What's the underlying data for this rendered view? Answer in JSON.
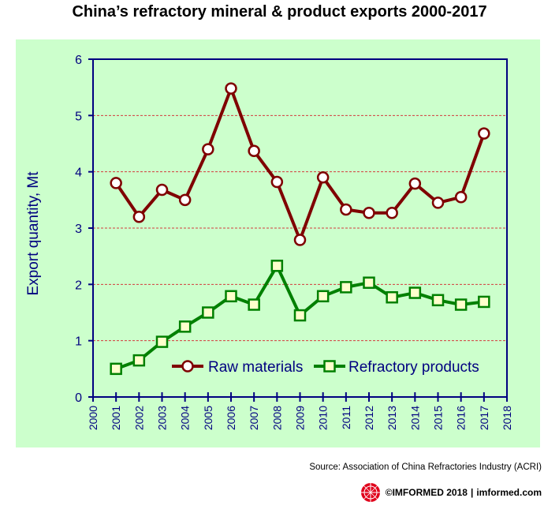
{
  "chart_data": {
    "type": "line",
    "title": "China’s refractory  mineral & product exports 2000-2017",
    "ylabel": "Export quantity, Mt",
    "xlabel": "",
    "xlim": [
      2000,
      2018
    ],
    "ylim": [
      0,
      6
    ],
    "x_ticks": [
      "2000",
      "2001",
      "2002",
      "2003",
      "2004",
      "2005",
      "2006",
      "2007",
      "2008",
      "2009",
      "2010",
      "2011",
      "2012",
      "2013",
      "2014",
      "2015",
      "2016",
      "2017",
      "2018"
    ],
    "y_ticks": [
      "0",
      "1",
      "2",
      "3",
      "4",
      "5",
      "6"
    ],
    "grid": "horizontal dashed",
    "legend_position": "bottom-center",
    "background_color": "#ccffcc",
    "x": [
      2001,
      2002,
      2003,
      2004,
      2005,
      2006,
      2007,
      2008,
      2009,
      2010,
      2011,
      2012,
      2013,
      2014,
      2015,
      2016,
      2017
    ],
    "series": [
      {
        "name": "Raw materials",
        "color": "#7f0000",
        "marker": "circle",
        "values": [
          3.8,
          3.2,
          3.68,
          3.5,
          4.4,
          5.48,
          4.37,
          3.82,
          2.79,
          3.9,
          3.33,
          3.27,
          3.27,
          3.79,
          3.45,
          3.55,
          4.68
        ]
      },
      {
        "name": "Refractory products",
        "color": "#008000",
        "marker": "square",
        "values": [
          0.5,
          0.65,
          0.98,
          1.25,
          1.5,
          1.79,
          1.64,
          2.33,
          1.45,
          1.79,
          1.95,
          2.03,
          1.77,
          1.85,
          1.72,
          1.64,
          1.69
        ]
      }
    ]
  },
  "source": "Source: Association of China Refractories Industry (ACRI)",
  "footer": {
    "copyright": "©IMFORMED 2018",
    "separator": "|",
    "website": "imformed.com"
  }
}
